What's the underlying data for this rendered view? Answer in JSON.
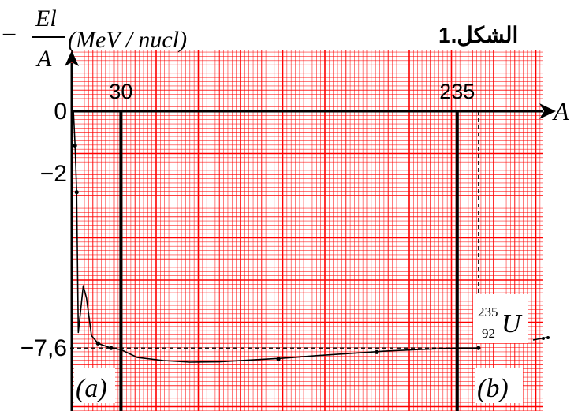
{
  "figure_label": "الشكل.1",
  "y_axis": {
    "fraction_numerator": "El",
    "fraction_denominator": "A",
    "minus_sign": "−",
    "unit_text": "(MeV / nucl)"
  },
  "x_axis": {
    "label": "A"
  },
  "regions": {
    "left": "(a)",
    "right": "(b)"
  },
  "nucleus": {
    "symbol": "U",
    "mass_number": "235",
    "atomic_number": "92"
  },
  "colors": {
    "grid": "#ff0000",
    "curve": "#000000",
    "axis": "#000000",
    "background": "#ffffff"
  },
  "chart_data": {
    "type": "line",
    "title": "الشكل.1",
    "xlabel": "A",
    "ylabel": "−El/A (MeV / nucl)",
    "x_ticks": [
      {
        "value": 30,
        "label": "30"
      },
      {
        "value": 235,
        "label": "235"
      }
    ],
    "y_ticks": [
      {
        "value": 0,
        "label": "0"
      },
      {
        "value": -2,
        "label": "−2"
      },
      {
        "value": -7.6,
        "label": "−7,6"
      }
    ],
    "xlim": [
      0,
      250
    ],
    "ylim": [
      -8.8,
      0.4
    ],
    "grid": true,
    "vertical_lines": [
      30,
      235
    ],
    "dashed_reference": {
      "x": 248,
      "y": -7.6
    },
    "series": [
      {
        "values": [
          {
            "x": 1,
            "y": 0
          },
          {
            "x": 2,
            "y": -1.1
          },
          {
            "x": 3,
            "y": -2.6
          },
          {
            "x": 4,
            "y": -7.1
          },
          {
            "x": 7,
            "y": -5.6
          },
          {
            "x": 9,
            "y": -6.0
          },
          {
            "x": 12,
            "y": -7.2
          },
          {
            "x": 16,
            "y": -7.45
          },
          {
            "x": 24,
            "y": -7.6
          },
          {
            "x": 30,
            "y": -7.65
          },
          {
            "x": 40,
            "y": -7.9
          },
          {
            "x": 56,
            "y": -8.0
          },
          {
            "x": 72,
            "y": -8.05
          },
          {
            "x": 90,
            "y": -8.04
          },
          {
            "x": 110,
            "y": -7.98
          },
          {
            "x": 130,
            "y": -7.92
          },
          {
            "x": 150,
            "y": -7.84
          },
          {
            "x": 170,
            "y": -7.77
          },
          {
            "x": 190,
            "y": -7.7
          },
          {
            "x": 210,
            "y": -7.65
          },
          {
            "x": 235,
            "y": -7.6
          },
          {
            "x": 248,
            "y": -7.6
          }
        ]
      }
    ],
    "markers": [
      {
        "x": 2,
        "y": -1.1
      },
      {
        "x": 3,
        "y": -2.6
      },
      {
        "x": 16,
        "y": -7.45
      },
      {
        "x": 24,
        "y": -7.6
      },
      {
        "x": 126,
        "y": -7.95
      },
      {
        "x": 186,
        "y": -7.73
      },
      {
        "x": 248,
        "y": -7.6
      }
    ]
  }
}
